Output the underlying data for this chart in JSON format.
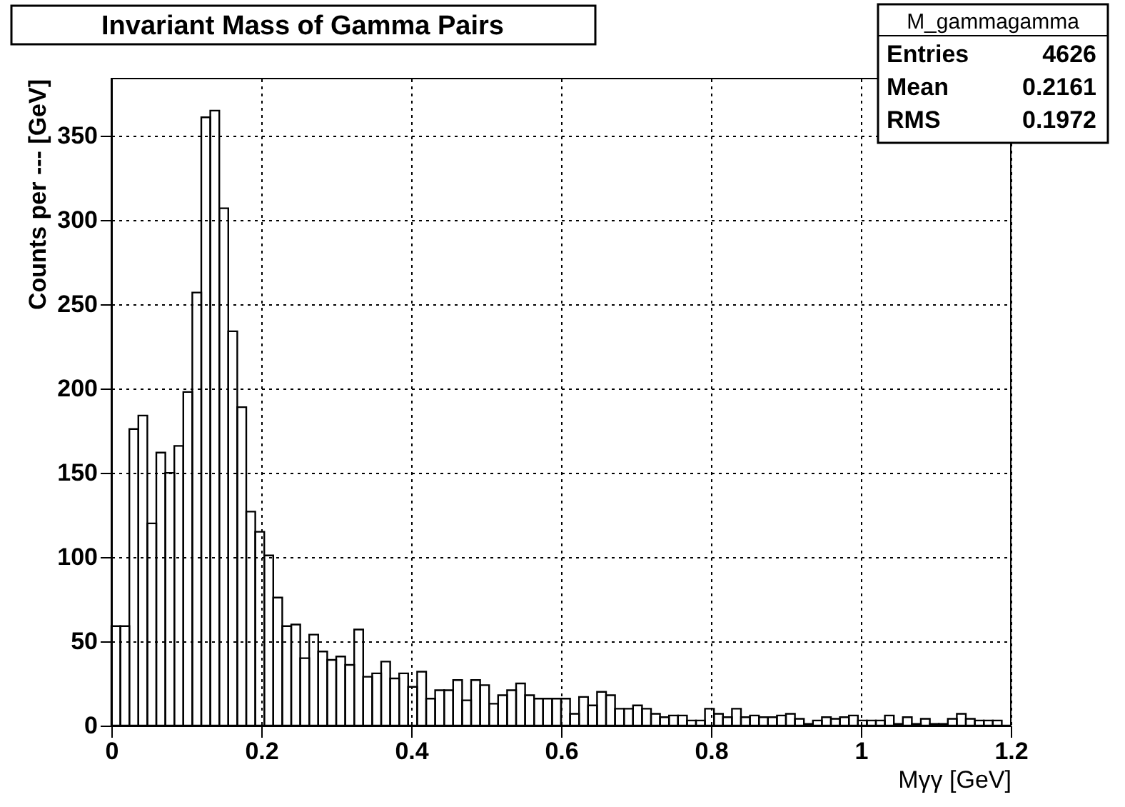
{
  "chart_data": {
    "type": "histogram",
    "title": "Invariant Mass of Gamma Pairs",
    "xlabel": "Mγγ [GeV]",
    "ylabel": "Counts per --- [GeV]",
    "annotations": [
      "M_gammagamma",
      "Entries 4626",
      "Mean 0.2161",
      "RMS 0.1972"
    ],
    "bins": [
      0,
      0.012,
      0.024,
      0.036,
      0.048,
      0.06,
      0.072,
      0.084,
      0.096,
      0.108,
      0.12,
      0.132,
      0.144,
      0.156,
      0.168,
      0.18,
      0.192,
      0.204,
      0.216,
      0.228,
      0.24,
      0.252,
      0.264,
      0.276,
      0.288,
      0.3,
      0.312,
      0.324,
      0.336,
      0.348,
      0.36,
      0.372,
      0.384,
      0.396,
      0.408,
      0.42,
      0.432,
      0.444,
      0.456,
      0.468,
      0.48,
      0.492,
      0.504,
      0.516,
      0.528,
      0.54,
      0.552,
      0.564,
      0.576,
      0.588,
      0.6,
      0.612,
      0.624,
      0.636,
      0.648,
      0.66,
      0.672,
      0.684,
      0.696,
      0.708,
      0.72,
      0.732,
      0.744,
      0.756,
      0.768,
      0.78,
      0.792,
      0.804,
      0.816,
      0.828,
      0.84,
      0.852,
      0.864,
      0.876,
      0.888,
      0.9,
      0.912,
      0.924,
      0.936,
      0.948,
      0.96,
      0.972,
      0.984,
      0.996,
      1.008,
      1.02,
      1.032,
      1.044,
      1.056,
      1.068,
      1.08,
      1.092,
      1.104,
      1.116,
      1.128,
      1.14,
      1.152,
      1.164,
      1.176,
      1.188,
      1.2
    ],
    "values": [
      59,
      59,
      176,
      184,
      120,
      162,
      150,
      166,
      198,
      257,
      361,
      365,
      307,
      234,
      189,
      127,
      115,
      101,
      76,
      59,
      60,
      40,
      54,
      44,
      39,
      41,
      36,
      57,
      29,
      31,
      38,
      28,
      31,
      23,
      32,
      16,
      21,
      21,
      27,
      15,
      27,
      24,
      13,
      18,
      21,
      25,
      18,
      16,
      16,
      16,
      16,
      7,
      17,
      12,
      20,
      18,
      10,
      10,
      12,
      10,
      7,
      5,
      6,
      6,
      3,
      3,
      10,
      7,
      5,
      10,
      5,
      6,
      5,
      5,
      6,
      7,
      4,
      1,
      3,
      5,
      4,
      5,
      6,
      3,
      3,
      3,
      6,
      1,
      5,
      1,
      4,
      1,
      1,
      4,
      7,
      4,
      3,
      3,
      3,
      0
    ],
    "color": "#000000",
    "xlim": [
      0,
      1.2
    ],
    "ylim": [
      0,
      384
    ],
    "xticks": [
      0,
      0.2,
      0.4,
      0.6,
      0.8,
      1,
      1.2
    ],
    "yticks": [
      0,
      50,
      100,
      150,
      200,
      250,
      300,
      350
    ],
    "grid": true
  }
}
